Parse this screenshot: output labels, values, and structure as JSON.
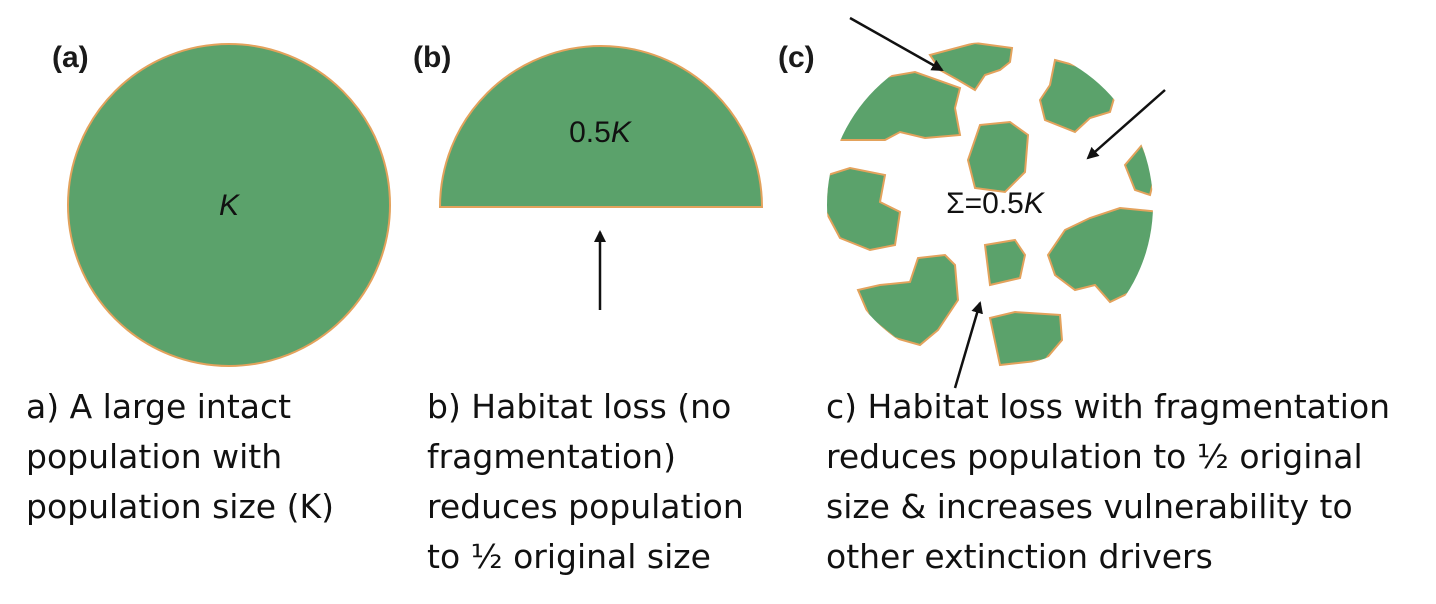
{
  "colors": {
    "habitat_fill": "#5ba26b",
    "habitat_edge": "#e3a25c",
    "arrow": "#111111"
  },
  "panels": [
    {
      "id": "a",
      "label": "(a)",
      "population_label": "K",
      "caption_lines": [
        "a) A large intact",
        "population with",
        "population size (K)"
      ]
    },
    {
      "id": "b",
      "label": "(b)",
      "population_label_prefix": "0.5",
      "population_label": "K",
      "caption_lines": [
        "b) Habitat loss (no",
        "fragmentation)",
        "reduces population",
        "to ½ original size"
      ]
    },
    {
      "id": "c",
      "label": "(c)",
      "population_label_prefix": "Σ=0.5",
      "population_label": "K",
      "caption_lines": [
        "c) Habitat loss with fragmentation",
        "reduces population to ½ original",
        "size & increases vulnerability to",
        "other extinction drivers"
      ]
    }
  ]
}
